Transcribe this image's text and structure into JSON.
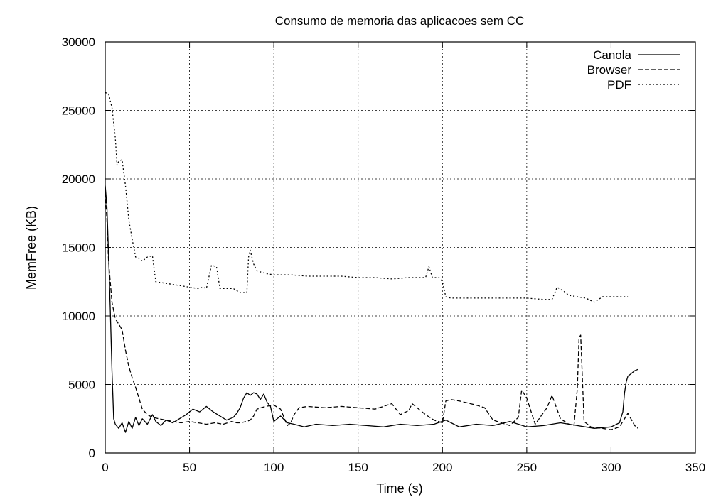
{
  "chart_data": {
    "type": "line",
    "title": "Consumo de memoria das aplicacoes sem CC",
    "xlabel": "Time (s)",
    "ylabel": "MemFree (KB)",
    "xlim": [
      0,
      350
    ],
    "ylim": [
      0,
      30000
    ],
    "xticks": [
      "0",
      "50",
      "100",
      "150",
      "200",
      "250",
      "300",
      "350"
    ],
    "yticks": [
      "0",
      "5000",
      "10000",
      "15000",
      "20000",
      "25000",
      "30000"
    ],
    "grid": true,
    "legend_position": "top-right",
    "series": [
      {
        "name": "Canola",
        "style": "solid",
        "x": [
          0,
          1,
          2,
          3,
          4,
          5,
          6,
          8,
          10,
          12,
          14,
          16,
          18,
          20,
          22,
          25,
          28,
          30,
          33,
          36,
          40,
          44,
          48,
          52,
          56,
          60,
          64,
          68,
          72,
          76,
          78,
          80,
          82,
          84,
          86,
          88,
          90,
          92,
          94,
          96,
          98,
          100,
          104,
          108,
          112,
          118,
          125,
          135,
          145,
          155,
          165,
          175,
          185,
          195,
          202,
          210,
          220,
          230,
          240,
          250,
          260,
          270,
          280,
          290,
          300,
          305,
          307,
          308,
          309,
          310,
          312,
          314,
          316
        ],
        "y": [
          19500,
          18000,
          14500,
          10500,
          6000,
          2500,
          2100,
          1800,
          2200,
          1500,
          2300,
          1800,
          2600,
          2000,
          2500,
          2100,
          2800,
          2300,
          2000,
          2400,
          2200,
          2500,
          2800,
          3200,
          3000,
          3400,
          3000,
          2700,
          2400,
          2600,
          2900,
          3300,
          4000,
          4400,
          4200,
          4400,
          4300,
          3900,
          4300,
          3700,
          3400,
          2300,
          2700,
          2200,
          2100,
          1900,
          2100,
          2000,
          2100,
          2000,
          1900,
          2100,
          2000,
          2100,
          2400,
          1900,
          2100,
          2000,
          2300,
          1900,
          2000,
          2200,
          2000,
          1800,
          1900,
          2200,
          3000,
          4400,
          5200,
          5600,
          5800,
          6000,
          6100
        ]
      },
      {
        "name": "Browser",
        "style": "dashed",
        "x": [
          0,
          1,
          2,
          3,
          4,
          6,
          8,
          10,
          12,
          14,
          16,
          18,
          20,
          22,
          25,
          28,
          32,
          36,
          40,
          45,
          50,
          55,
          60,
          65,
          70,
          75,
          78,
          80,
          84,
          86,
          88,
          90,
          95,
          100,
          104,
          106,
          108,
          110,
          112,
          115,
          120,
          130,
          140,
          150,
          160,
          165,
          170,
          175,
          180,
          182,
          185,
          190,
          195,
          200,
          202,
          205,
          210,
          220,
          225,
          230,
          240,
          245,
          247,
          250,
          255,
          262,
          265,
          270,
          275,
          278,
          280,
          281,
          282,
          284,
          288,
          295,
          300,
          305,
          310,
          314,
          316
        ],
        "y": [
          19000,
          17000,
          14000,
          12500,
          11000,
          9800,
          9400,
          9000,
          7500,
          6300,
          5500,
          4800,
          4000,
          3200,
          2800,
          2600,
          2500,
          2400,
          2300,
          2200,
          2300,
          2200,
          2100,
          2200,
          2100,
          2300,
          2200,
          2200,
          2300,
          2400,
          2700,
          3200,
          3400,
          3500,
          3200,
          2600,
          2000,
          2200,
          2800,
          3300,
          3400,
          3300,
          3400,
          3300,
          3200,
          3400,
          3600,
          2800,
          3100,
          3600,
          3300,
          2800,
          2400,
          2200,
          3800,
          3900,
          3800,
          3500,
          3300,
          2400,
          2000,
          2600,
          4600,
          4000,
          2100,
          3300,
          4200,
          2500,
          2100,
          2000,
          4700,
          8400,
          8600,
          2300,
          1900,
          1800,
          1700,
          1900,
          2900,
          2000,
          1800
        ]
      },
      {
        "name": "PDF",
        "style": "dotted",
        "x": [
          0,
          2,
          4,
          6,
          7,
          8,
          10,
          12,
          14,
          16,
          18,
          20,
          22,
          25,
          28,
          30,
          35,
          40,
          45,
          50,
          55,
          58,
          60,
          63,
          66,
          68,
          72,
          76,
          80,
          84,
          85,
          86,
          88,
          90,
          95,
          100,
          110,
          120,
          140,
          150,
          160,
          170,
          180,
          190,
          192,
          194,
          198,
          200,
          202,
          205,
          210,
          220,
          230,
          240,
          250,
          260,
          265,
          268,
          272,
          275,
          280,
          285,
          290,
          295,
          300,
          310
        ],
        "y": [
          26300,
          26200,
          25200,
          23000,
          21000,
          21300,
          21400,
          19500,
          17000,
          15600,
          14300,
          14200,
          14000,
          14300,
          14400,
          12500,
          12400,
          12300,
          12200,
          12100,
          12000,
          12100,
          12000,
          13700,
          13600,
          12000,
          12000,
          12000,
          11700,
          11700,
          14300,
          14800,
          13800,
          13300,
          13100,
          13000,
          13000,
          12900,
          12900,
          12800,
          12800,
          12700,
          12800,
          12800,
          13600,
          12800,
          12800,
          12500,
          11400,
          11300,
          11300,
          11300,
          11300,
          11300,
          11300,
          11200,
          11200,
          12100,
          11800,
          11500,
          11400,
          11300,
          11000,
          11400,
          11400,
          11400
        ]
      }
    ]
  }
}
